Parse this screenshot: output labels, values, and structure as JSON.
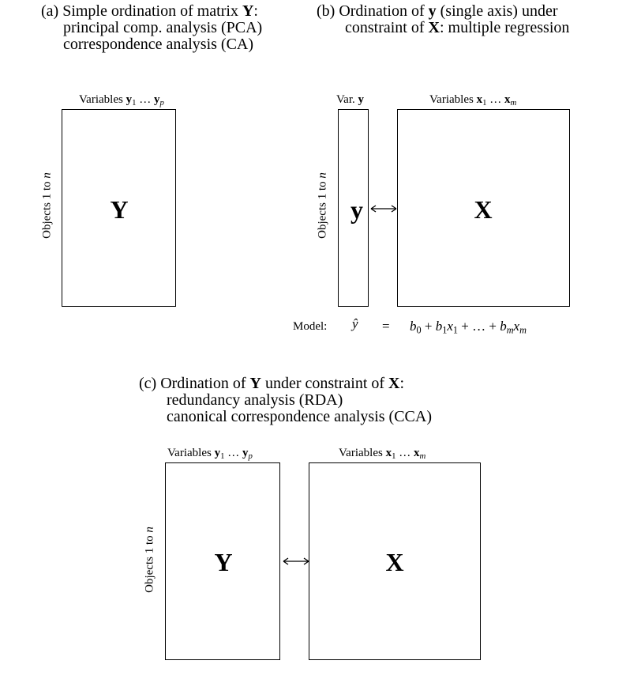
{
  "panel_a": {
    "title": {
      "prefix": "(a) Simple ordination of matrix ",
      "bold": "Y",
      "suffix": ":"
    },
    "line2": "principal comp. analysis (PCA)",
    "line3": "correspondence analysis (CA)",
    "var_header": {
      "text": "Variables ",
      "v1": "y",
      "s1": "1",
      "dots": " … ",
      "v2": "y",
      "s2": "p"
    },
    "objects_label": {
      "text": "Objects 1 to ",
      "n": "n"
    },
    "matrix_label": "Y"
  },
  "panel_b": {
    "title": {
      "prefix": "(b) Ordination of ",
      "bold": "y",
      "suffix": " (single axis) under"
    },
    "line2": {
      "prefix": "constraint of ",
      "bold": "X",
      "suffix": ": multiple regression"
    },
    "var_y_header": {
      "text": "Var. ",
      "v": "y"
    },
    "var_x_header": {
      "text": "Variables ",
      "v1": "x",
      "s1": "1",
      "dots": " … ",
      "v2": "x",
      "s2": "m"
    },
    "objects_label": {
      "text": "Objects 1 to ",
      "n": "n"
    },
    "matrix_y_label": "y",
    "matrix_x_label": "X",
    "model": {
      "label": "Model:",
      "lhs": "ŷ",
      "eq": "=",
      "b0": "b",
      "b0s": "0",
      "plus1": " + ",
      "b1": "b",
      "b1s": "1",
      "x1": "x",
      "x1s": "1",
      "mid": " + … + ",
      "bm": "b",
      "bms": "m",
      "xm": "x",
      "xms": "m"
    }
  },
  "panel_c": {
    "title": {
      "prefix": "(c) Ordination of ",
      "bold1": "Y",
      "mid": " under constraint of ",
      "bold2": "X",
      "suffix": ":"
    },
    "line2": "redundancy analysis (RDA)",
    "line3": "canonical correspondence analysis (CCA)",
    "var_y_header": {
      "text": "Variables ",
      "v1": "y",
      "s1": "1",
      "dots": " … ",
      "v2": "y",
      "s2": "p"
    },
    "var_x_header": {
      "text": "Variables ",
      "v1": "x",
      "s1": "1",
      "dots": " … ",
      "v2": "x",
      "s2": "m"
    },
    "objects_label": {
      "text": "Objects 1 to ",
      "n": "n"
    },
    "matrix_y_label": "Y",
    "matrix_x_label": "X"
  }
}
